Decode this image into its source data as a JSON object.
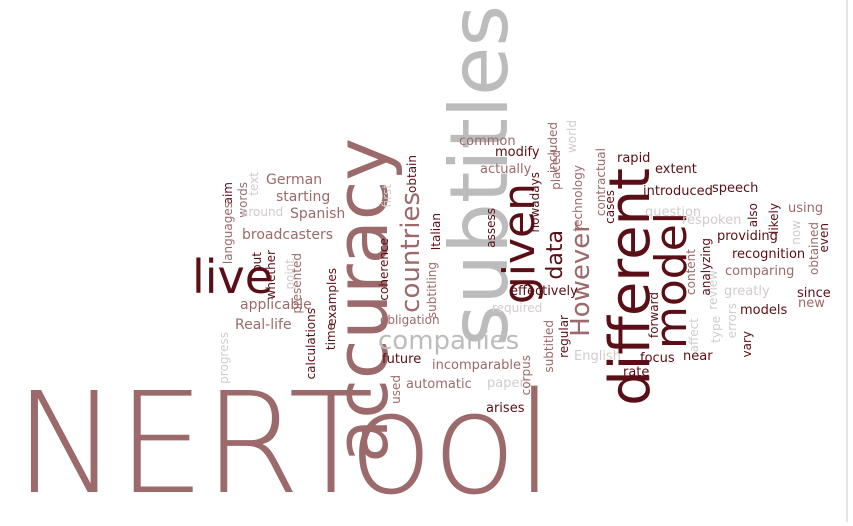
{
  "colors": {
    "dark": "#5a0f16",
    "mid": "#9c6a6a",
    "gray": "#bcbcbc",
    "light": "#d2cccc"
  },
  "words": [
    {
      "t": "NERTool",
      "c": "mid"
    },
    {
      "t": "subtitles",
      "c": "gray"
    },
    {
      "t": "accuracy",
      "c": "mid"
    },
    {
      "t": "different",
      "c": "dark"
    },
    {
      "t": "model",
      "c": "dark"
    },
    {
      "t": "given",
      "c": "dark"
    },
    {
      "t": "live",
      "c": "dark"
    },
    {
      "t": "companies",
      "c": "gray"
    },
    {
      "t": "countries",
      "c": "mid"
    },
    {
      "t": "However",
      "c": "mid"
    },
    {
      "t": "data",
      "c": "dark"
    },
    {
      "t": "German",
      "c": "mid"
    },
    {
      "t": "starting",
      "c": "mid"
    },
    {
      "t": "Spanish",
      "c": "mid"
    },
    {
      "t": "broadcasters",
      "c": "mid"
    },
    {
      "t": "Real-life",
      "c": "mid"
    },
    {
      "t": "applicable",
      "c": "mid"
    },
    {
      "t": "calculations",
      "c": "dark"
    },
    {
      "t": "examples",
      "c": "dark"
    },
    {
      "t": "presented",
      "c": "mid"
    },
    {
      "t": "point",
      "c": "light"
    },
    {
      "t": "whether",
      "c": "dark"
    },
    {
      "t": "put",
      "c": "dark"
    },
    {
      "t": "words",
      "c": "mid"
    },
    {
      "t": "aim",
      "c": "dark"
    },
    {
      "t": "languages",
      "c": "mid"
    },
    {
      "t": "text",
      "c": "light"
    },
    {
      "t": "around",
      "c": "light"
    },
    {
      "t": "progress",
      "c": "light"
    },
    {
      "t": "time",
      "c": "dark"
    },
    {
      "t": "coherence",
      "c": "dark"
    },
    {
      "t": "obligation",
      "c": "mid"
    },
    {
      "t": "future",
      "c": "dark"
    },
    {
      "t": "first",
      "c": "light"
    },
    {
      "t": "obtain",
      "c": "dark"
    },
    {
      "t": "Italian",
      "c": "dark"
    },
    {
      "t": "subtitling",
      "c": "mid"
    },
    {
      "t": "used",
      "c": "mid"
    },
    {
      "t": "incomparable",
      "c": "mid"
    },
    {
      "t": "automatic",
      "c": "mid"
    },
    {
      "t": "papers",
      "c": "light"
    },
    {
      "t": "arises",
      "c": "dark"
    },
    {
      "t": "corpus",
      "c": "mid"
    },
    {
      "t": "required",
      "c": "light"
    },
    {
      "t": "effectively",
      "c": "dark"
    },
    {
      "t": "common",
      "c": "mid"
    },
    {
      "t": "modify",
      "c": "dark"
    },
    {
      "t": "actually",
      "c": "mid"
    },
    {
      "t": "assess",
      "c": "dark"
    },
    {
      "t": "nowadays",
      "c": "dark"
    },
    {
      "t": "placed",
      "c": "mid"
    },
    {
      "t": "included",
      "c": "mid"
    },
    {
      "t": "world",
      "c": "light"
    },
    {
      "t": "technology",
      "c": "mid"
    },
    {
      "t": "subtitled",
      "c": "mid"
    },
    {
      "t": "regular",
      "c": "dark"
    },
    {
      "t": "English",
      "c": "light"
    },
    {
      "t": "cases",
      "c": "dark"
    },
    {
      "t": "contractual",
      "c": "mid"
    },
    {
      "t": "rapid",
      "c": "dark"
    },
    {
      "t": "extent",
      "c": "dark"
    },
    {
      "t": "introduced",
      "c": "dark"
    },
    {
      "t": "speech",
      "c": "dark"
    },
    {
      "t": "question",
      "c": "light"
    },
    {
      "t": "respoken",
      "c": "light"
    },
    {
      "t": "also",
      "c": "dark"
    },
    {
      "t": "likely",
      "c": "dark"
    },
    {
      "t": "using",
      "c": "mid"
    },
    {
      "t": "providing",
      "c": "dark"
    },
    {
      "t": "now",
      "c": "light"
    },
    {
      "t": "obtained",
      "c": "mid"
    },
    {
      "t": "even",
      "c": "dark"
    },
    {
      "t": "recognition",
      "c": "dark"
    },
    {
      "t": "analyzing",
      "c": "dark"
    },
    {
      "t": "comparing",
      "c": "mid"
    },
    {
      "t": "greatly",
      "c": "light"
    },
    {
      "t": "content",
      "c": "mid"
    },
    {
      "t": "review",
      "c": "light"
    },
    {
      "t": "forward",
      "c": "dark"
    },
    {
      "t": "affect",
      "c": "light"
    },
    {
      "t": "type",
      "c": "light"
    },
    {
      "t": "errors",
      "c": "light"
    },
    {
      "t": "models",
      "c": "dark"
    },
    {
      "t": "vary",
      "c": "dark"
    },
    {
      "t": "since",
      "c": "dark"
    },
    {
      "t": "new",
      "c": "mid"
    },
    {
      "t": "focus",
      "c": "dark"
    },
    {
      "t": "near",
      "c": "dark"
    },
    {
      "t": "rate",
      "c": "dark"
    }
  ]
}
